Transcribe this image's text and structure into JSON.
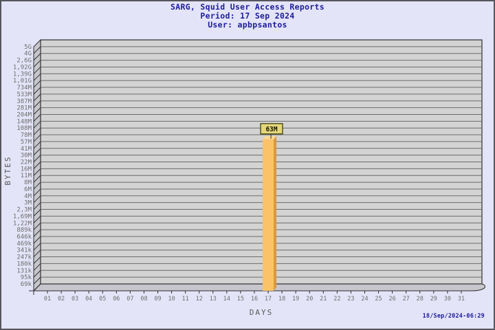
{
  "window": {
    "background": "#E4E4F8",
    "border_color": "#55555C"
  },
  "header": {
    "title": "SARG, Squid User Access Reports",
    "period": "Period: 17 Sep 2024",
    "user": "User: apbpsantos",
    "text_color": "#1C1C9C"
  },
  "footer": {
    "timestamp": "18/Sep/2024-06:29"
  },
  "chart_data": {
    "type": "bar",
    "style_3d": true,
    "title": "SARG, Squid User Access Reports",
    "subtitle": [
      "Period: 17 Sep 2024",
      "User: apbpsantos"
    ],
    "xlabel": "DAYS",
    "ylabel": "BYTES",
    "y_scale": "exponential",
    "grid": "horizontal-only",
    "y_tick_labels": [
      "5G",
      "4G",
      "2,6G",
      "1,92G",
      "1,39G",
      "1,01G",
      "734M",
      "533M",
      "387M",
      "281M",
      "204M",
      "148M",
      "108M",
      "78M",
      "57M",
      "41M",
      "30M",
      "22M",
      "16M",
      "11M",
      "8M",
      "6M",
      "4M",
      "3M",
      "2,3M",
      "1,69M",
      "1,22M",
      "889k",
      "646k",
      "469k",
      "341k",
      "247k",
      "180k",
      "131k",
      "95k",
      "69k"
    ],
    "x_categories": [
      "01",
      "02",
      "03",
      "04",
      "05",
      "06",
      "07",
      "08",
      "09",
      "10",
      "11",
      "12",
      "13",
      "14",
      "15",
      "16",
      "17",
      "18",
      "19",
      "20",
      "21",
      "22",
      "23",
      "24",
      "25",
      "26",
      "27",
      "28",
      "29",
      "30",
      "31"
    ],
    "bars": [
      {
        "day": "17",
        "value_label": "63M"
      }
    ],
    "colors": {
      "plot_bg": "#D3D3D3",
      "grid_line": "#6B6B6B",
      "frame_line": "#2E2E2E",
      "wall_fill": "#C6C6CC",
      "bar_front": "#FCC268",
      "bar_side": "#D9993F",
      "bar_top": "#FAD795",
      "annotation_bg": "#E3D67B",
      "annotation_border": "#4A4A14",
      "tick_text": "#6E6E6E",
      "axis_title_text": "#585858"
    }
  }
}
